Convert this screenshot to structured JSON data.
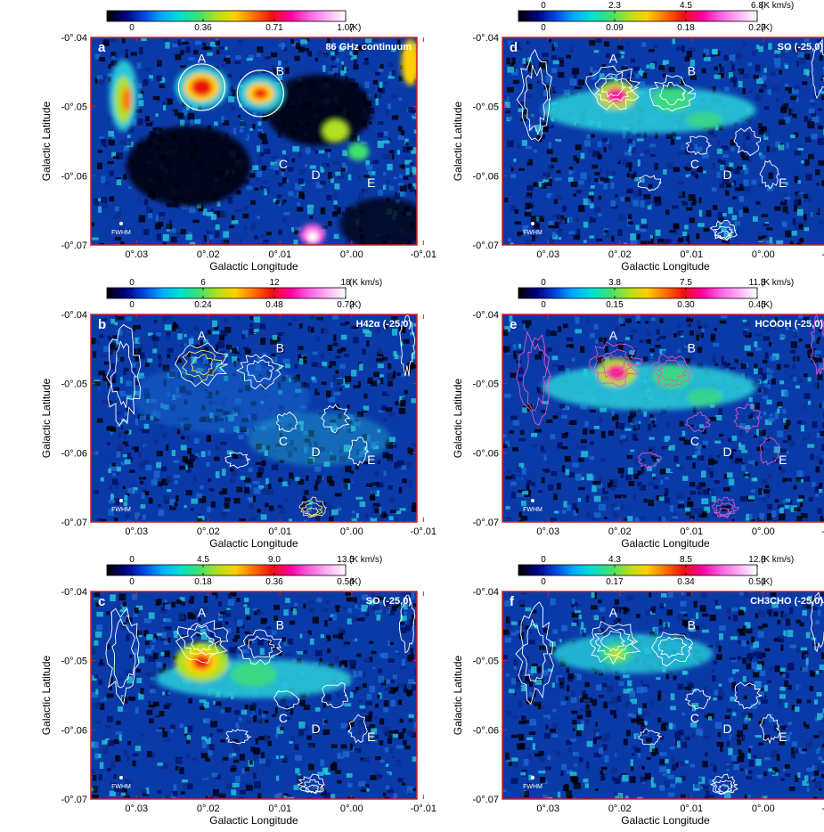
{
  "colors": {
    "frame": "#cc2222",
    "map_low": "#000010",
    "map_mid": "#0a3aa8",
    "map_high": "#27c7d8",
    "contour_white": "#ffffff",
    "contour_yellow": "#f4e36a",
    "contour_magenta": "#e055c8"
  },
  "colormap_stops": [
    "#000000",
    "#000080",
    "#0044dd",
    "#00aaff",
    "#00e0d0",
    "#40e070",
    "#b0e020",
    "#ffd000",
    "#ff7000",
    "#ee1010",
    "#ff00a0",
    "#ff60e0",
    "#ffb0f4",
    "#ffffff"
  ],
  "axes": {
    "x_ticks": [
      "0°.03",
      "0°.02",
      "0°.01",
      "0°.00",
      "-0°.01"
    ],
    "y_ticks": [
      "-0°.04",
      "-0°.05",
      "-0°.06",
      "-0°.07"
    ],
    "xlabel": "Galactic Longitude",
    "ylabel": "Galactic Latitude"
  },
  "source_labels": [
    "A",
    "B",
    "C",
    "D",
    "E"
  ],
  "fwhm_label": "FWHM",
  "panels": [
    {
      "letter": "a",
      "title": "86 GHz continuum",
      "contour": "magenta-none",
      "cbar_top": [],
      "cbar_top_unit": "",
      "cbar_bottom": [
        "0",
        "0.36",
        "0.71",
        "1.07"
      ],
      "cbar_bottom_unit": "(K)",
      "emission": "continuum"
    },
    {
      "letter": "b",
      "title": "H42α (-25,0)",
      "contour": "white",
      "cbar_top": [
        "0",
        "6",
        "12",
        "18"
      ],
      "cbar_top_unit": "(K km/s)",
      "cbar_bottom": [
        "0",
        "0.24",
        "0.48",
        "0.72"
      ],
      "cbar_bottom_unit": "(K)",
      "emission": "faint"
    },
    {
      "letter": "c",
      "title": "SO (-25,0)",
      "contour": "white",
      "cbar_top": [
        "0",
        "4.5",
        "9.0",
        "13.5"
      ],
      "cbar_top_unit": "(K km/s)",
      "cbar_bottom": [
        "0",
        "0.18",
        "0.36",
        "0.54"
      ],
      "cbar_bottom_unit": "(K)",
      "emission": "strongA"
    },
    {
      "letter": "d",
      "title": "SO (-25,0)",
      "contour": "white",
      "cbar_top": [
        "0",
        "2.3",
        "4.5",
        "6.8"
      ],
      "cbar_top_unit": "(K km/s)",
      "cbar_bottom": [
        "0",
        "0.09",
        "0.18",
        "0.27"
      ],
      "cbar_bottom_unit": "(K)",
      "emission": "ridge"
    },
    {
      "letter": "e",
      "title": "HCOOH (-25,0)",
      "contour": "magenta",
      "cbar_top": [
        "0",
        "3.8",
        "7.5",
        "11.3"
      ],
      "cbar_top_unit": "(K km/s)",
      "cbar_bottom": [
        "0",
        "0.15",
        "0.30",
        "0.45"
      ],
      "cbar_bottom_unit": "(K)",
      "emission": "ridge"
    },
    {
      "letter": "f",
      "title": "CH3CHO (-25,0)",
      "contour": "white",
      "cbar_top": [
        "0",
        "4.3",
        "8.5",
        "12.8"
      ],
      "cbar_top_unit": "(K km/s)",
      "cbar_bottom": [
        "0",
        "0.17",
        "0.34",
        "0.51"
      ],
      "cbar_bottom_unit": "(K)",
      "emission": "faintA"
    }
  ]
}
